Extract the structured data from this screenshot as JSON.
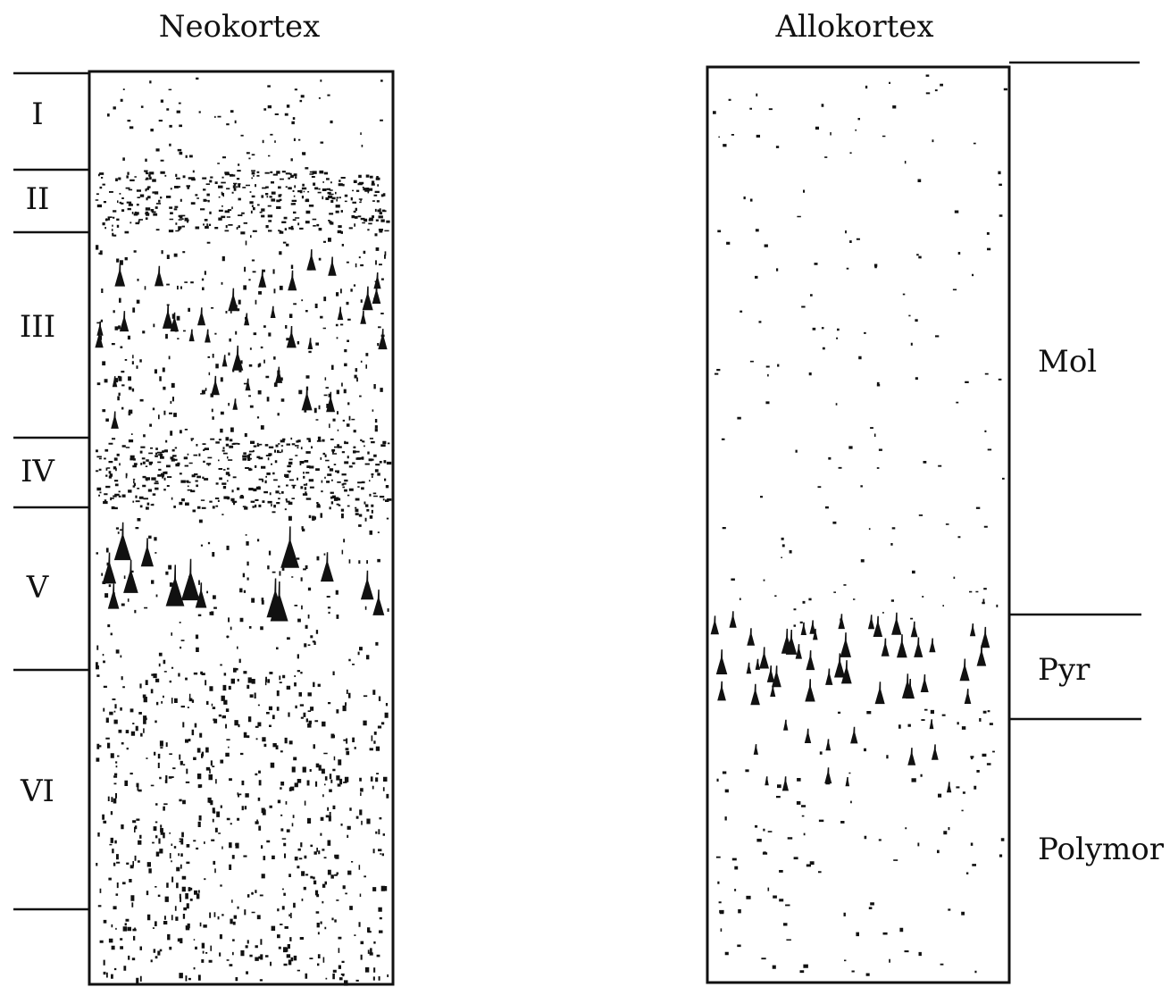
{
  "titles": {
    "left": "Neokortex",
    "right": "Allokortex"
  },
  "neocortex_layers": [
    "I",
    "II",
    "III",
    "IV",
    "V",
    "VI"
  ],
  "allocortex_layers": [
    "Mol",
    "Pyr",
    "Polymor"
  ]
}
